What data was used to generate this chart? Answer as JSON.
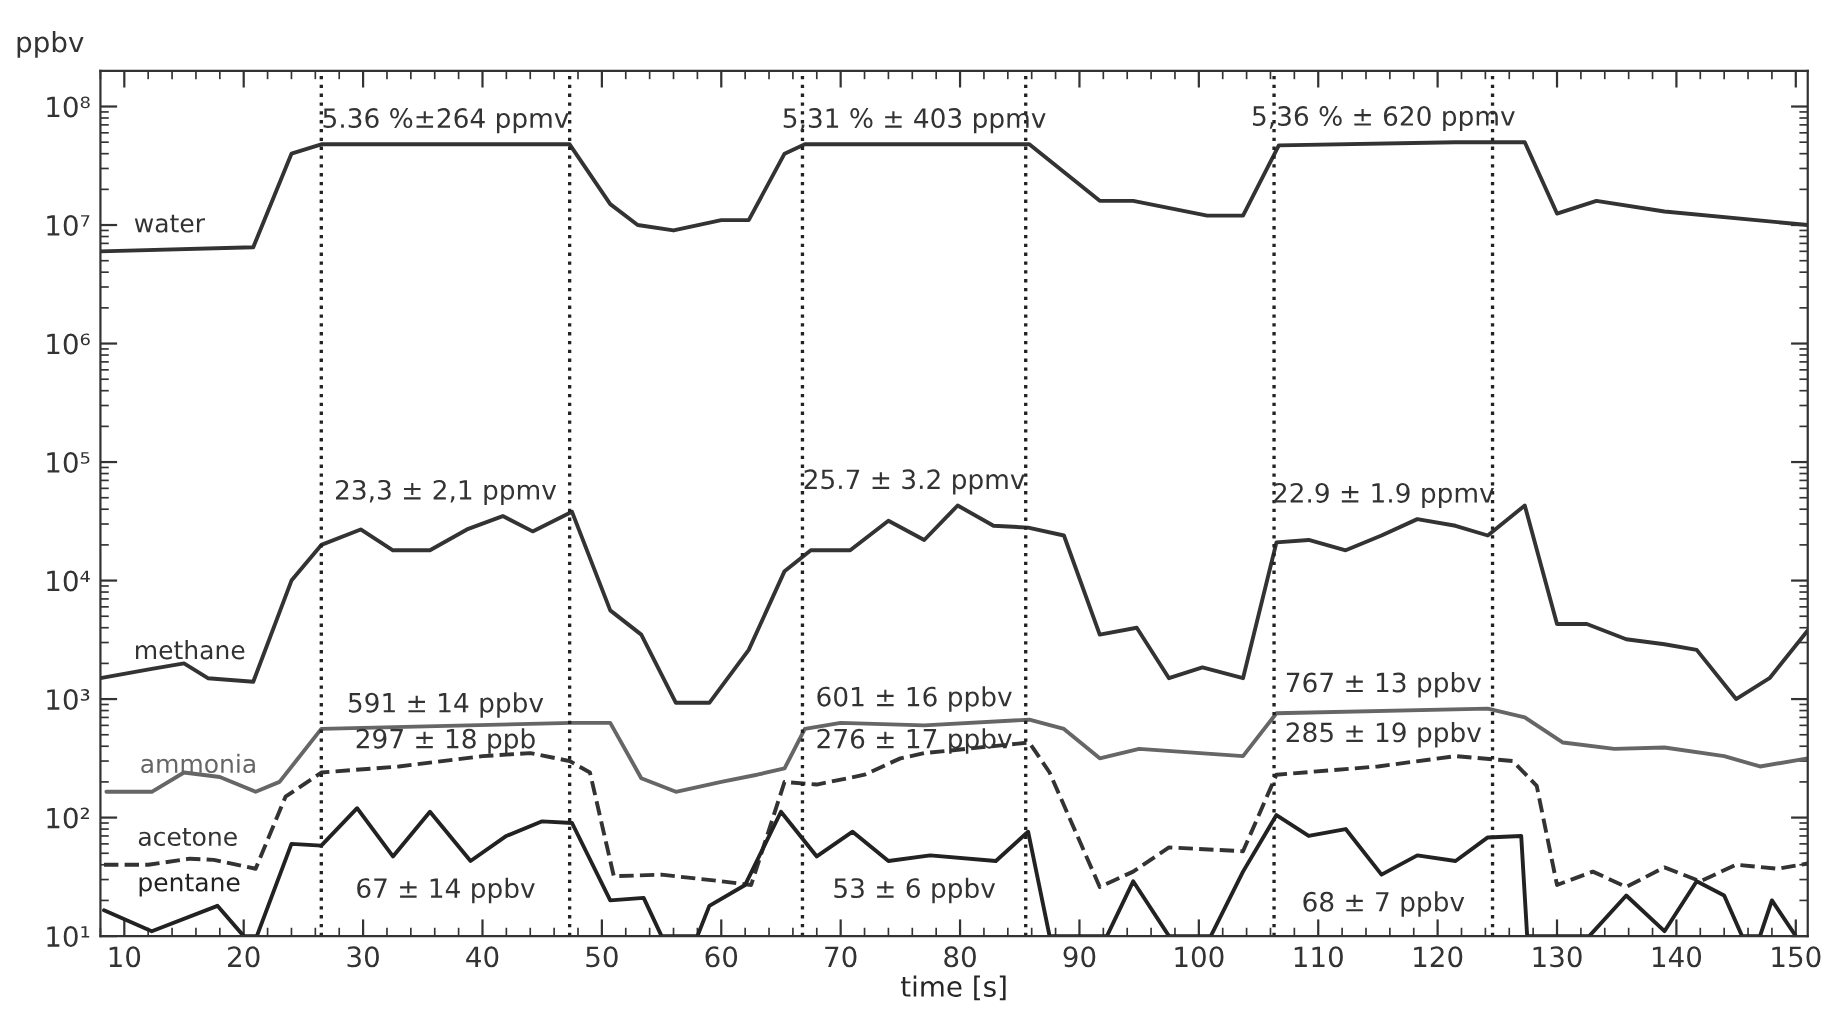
{
  "chart_data": {
    "type": "line",
    "xlabel": "time [s]",
    "ylabel": "ppbv",
    "log": "y",
    "grid": false,
    "legend": false,
    "line_style": "solid",
    "marker": "none",
    "xlim": [
      8,
      151
    ],
    "xticks": [
      10,
      20,
      30,
      40,
      50,
      60,
      70,
      80,
      90,
      100,
      110,
      120,
      130,
      140,
      150
    ],
    "ylim": [
      10,
      200000000
    ],
    "yticks": [
      {
        "value": 10,
        "label": "10¹"
      },
      {
        "value": 100,
        "label": "10²"
      },
      {
        "value": 1000,
        "label": "10³"
      },
      {
        "value": 10000,
        "label": "10⁴"
      },
      {
        "value": 100000,
        "label": "10⁵"
      },
      {
        "value": 1000000,
        "label": "10⁶"
      },
      {
        "value": 10000000,
        "label": "10⁷"
      },
      {
        "value": 100000000,
        "label": "10⁸"
      }
    ],
    "series": [
      {
        "name": "water",
        "color": "#333333",
        "x": [
          8,
          20.8,
          24,
          26.5,
          47.3,
          50.7,
          53,
          56,
          60,
          62.3,
          65.3,
          67,
          85.8,
          91.7,
          94.5,
          100.7,
          103.7,
          106.7,
          121.5,
          127.3,
          130,
          133.3,
          139,
          151
        ],
        "values": [
          6000000,
          6500000,
          40000000,
          48000000,
          48000000,
          15000000,
          10000000,
          9000000,
          11000000,
          11000000,
          40000000,
          48000000,
          48000000,
          16000000,
          16000000,
          12000000,
          12000000,
          47000000,
          50000000,
          50000000,
          12500000,
          16000000,
          13000000,
          10000000
        ]
      },
      {
        "name": "methane",
        "color": "#333333",
        "x": [
          8,
          12.3,
          15,
          17,
          20.8,
          24,
          26.5,
          29.8,
          32.5,
          35.6,
          38.7,
          41.7,
          44.2,
          47.5,
          50.7,
          53.3,
          56.2,
          59,
          62.3,
          65.3,
          67.5,
          70.8,
          74,
          77,
          79.8,
          82.8,
          85.7,
          88.7,
          91.7,
          94.8,
          97.5,
          100.3,
          103.7,
          106.5,
          109.2,
          112.3,
          115.3,
          118.3,
          121.5,
          124.2,
          127.3,
          130,
          132.5,
          135.8,
          139,
          141.7,
          145,
          147.8,
          151
        ],
        "values": [
          1500,
          1800,
          2000,
          1500,
          1400,
          10000,
          20000,
          27000,
          18000,
          18000,
          27000,
          35000,
          26000,
          38000,
          5600,
          3500,
          930,
          930,
          2600,
          12000,
          18000,
          18000,
          32000,
          22000,
          43000,
          29000,
          28000,
          24000,
          3500,
          4000,
          1500,
          1850,
          1500,
          21000,
          22000,
          18000,
          24000,
          33000,
          29000,
          24000,
          43000,
          4300,
          4300,
          3200,
          2900,
          2600,
          1000,
          1500,
          3800
        ]
      },
      {
        "name": "ammonia",
        "color": "#666666",
        "x": [
          8.5,
          12.3,
          15,
          18,
          21,
          23,
          26.5,
          47.5,
          50.7,
          53.3,
          56.2,
          60,
          63,
          65.3,
          67,
          70,
          77,
          85.8,
          88.7,
          91.7,
          95,
          103.7,
          106.5,
          124.2,
          127.3,
          130.5,
          134.8,
          139,
          144,
          147,
          151
        ],
        "values": [
          165,
          165,
          240,
          220,
          165,
          200,
          560,
          630,
          630,
          215,
          165,
          200,
          230,
          260,
          560,
          630,
          600,
          670,
          560,
          316,
          380,
          330,
          760,
          830,
          700,
          430,
          380,
          390,
          330,
          270,
          316
        ]
      },
      {
        "name": "acetone",
        "color": "#333333",
        "line_style": "dashed",
        "x": [
          8.3,
          12,
          15.5,
          17.5,
          21,
          23.5,
          26.5,
          33,
          40,
          44,
          47.3,
          49,
          51,
          55,
          60,
          62.5,
          65.3,
          68,
          72,
          75,
          77,
          85.8,
          87.5,
          91.7,
          94.5,
          97.5,
          103.7,
          106.5,
          115,
          121.5,
          126.3,
          128.3,
          130,
          133,
          135.8,
          139,
          142,
          145,
          148.5,
          151
        ],
        "values": [
          40,
          40,
          45,
          44,
          37,
          150,
          240,
          270,
          330,
          350,
          300,
          240,
          32,
          33,
          29,
          27,
          200,
          190,
          230,
          316,
          350,
          430,
          240,
          26,
          35,
          56,
          52,
          230,
          270,
          330,
          300,
          185,
          27,
          35,
          26,
          38,
          29,
          40,
          37,
          41
        ]
      },
      {
        "name": "pentane",
        "color": "#222222",
        "x": [
          8.3,
          12.3,
          17.8,
          20,
          21.1,
          24,
          26.5,
          29.5,
          32.5,
          35.6,
          39,
          42,
          45,
          47.5,
          50.7,
          53.5,
          55,
          58,
          59,
          62,
          65,
          68,
          71,
          74,
          77.5,
          83,
          85.7,
          87.5,
          92.3,
          94.5,
          97.5,
          101,
          103.7,
          106.5,
          109.2,
          112.3,
          115.3,
          118.3,
          121.5,
          124.2,
          127,
          127.5,
          132.7,
          135.8,
          139,
          141.7,
          144,
          145.5,
          147,
          148,
          150
        ],
        "values": [
          16.5,
          11,
          18,
          10,
          10,
          60,
          58,
          120,
          47,
          112,
          43,
          70,
          93,
          90,
          20,
          21,
          10,
          10,
          18,
          27,
          112,
          47,
          76,
          43,
          48,
          43,
          76,
          10,
          10,
          29,
          10,
          10,
          35,
          105,
          70,
          80,
          33,
          48,
          43,
          68,
          70,
          10,
          10,
          22,
          11,
          29,
          22,
          10,
          10,
          20,
          10
        ]
      }
    ],
    "ref_lines": [
      {
        "axis": "x",
        "value": 26.5,
        "line_style": "dotted",
        "color": "#222222"
      },
      {
        "axis": "x",
        "value": 47.3,
        "line_style": "dotted",
        "color": "#222222"
      },
      {
        "axis": "x",
        "value": 66.8,
        "line_style": "dotted",
        "color": "#222222"
      },
      {
        "axis": "x",
        "value": 85.5,
        "line_style": "dotted",
        "color": "#222222"
      },
      {
        "axis": "x",
        "value": 106.3,
        "line_style": "dotted",
        "color": "#222222"
      },
      {
        "axis": "x",
        "value": 124.6,
        "line_style": "dotted",
        "color": "#222222"
      }
    ],
    "annotations": [
      "5.36 %±264 ppmv",
      "5,31 % ± 403 ppmv",
      "5,36 % ± 620 ppmv",
      "23,3 ± 2,1 ppmv",
      "25.7 ± 3.2 ppmv",
      "22.9 ± 1.9 ppmv",
      "591 ± 14 ppbv",
      "601 ± 16 ppbv",
      "767 ± 13 ppbv",
      "297 ± 18 ppb",
      "276 ± 17 ppbv",
      "285 ± 19 ppbv",
      "67 ± 14 ppbv",
      "53 ± 6 ppbv",
      "68 ± 7 ppbv"
    ]
  }
}
